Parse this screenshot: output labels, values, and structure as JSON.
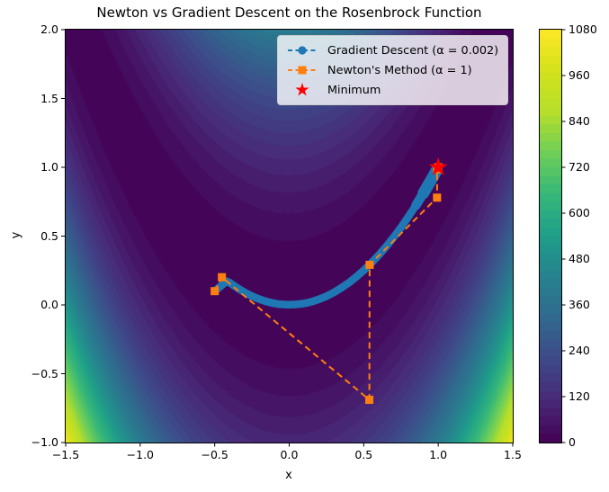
{
  "figure": {
    "title": "Newton vs Gradient Descent on the Rosenbrock Function",
    "xlabel": "x",
    "ylabel": "y",
    "background": "#ffffff"
  },
  "chart_data": {
    "type": "contour+line",
    "title": "Newton vs Gradient Descent on the Rosenbrock Function",
    "xlabel": "x",
    "ylabel": "y",
    "xlim": [
      -1.5,
      1.5
    ],
    "ylim": [
      -1.0,
      2.0
    ],
    "grid": false,
    "legend_position": "upper center-right inside axes",
    "background": {
      "function": "Rosenbrock f(x,y) = (1-x)^2 + 100*(y-x^2)^2",
      "colormap": "viridis",
      "levels": 48,
      "vmin": 0,
      "vmax": 1080,
      "colormap_stops": [
        [
          0.0,
          "#440154"
        ],
        [
          0.1,
          "#482878"
        ],
        [
          0.2,
          "#3e4989"
        ],
        [
          0.3,
          "#31688e"
        ],
        [
          0.4,
          "#26828e"
        ],
        [
          0.5,
          "#1f9e89"
        ],
        [
          0.6,
          "#35b779"
        ],
        [
          0.7,
          "#6ece58"
        ],
        [
          0.8,
          "#b5de2b"
        ],
        [
          0.9,
          "#d2e21b"
        ],
        [
          1.0,
          "#fde725"
        ]
      ]
    },
    "x_ticks": [
      {
        "v": -1.5,
        "label": "−1.5"
      },
      {
        "v": -1.0,
        "label": "−1.0"
      },
      {
        "v": -0.5,
        "label": "−0.5"
      },
      {
        "v": 0.0,
        "label": "0.0"
      },
      {
        "v": 0.5,
        "label": "0.5"
      },
      {
        "v": 1.0,
        "label": "1.0"
      },
      {
        "v": 1.5,
        "label": "1.5"
      }
    ],
    "y_ticks": [
      {
        "v": -1.0,
        "label": "−1.0"
      },
      {
        "v": -0.5,
        "label": "−0.5"
      },
      {
        "v": 0.0,
        "label": "0.0"
      },
      {
        "v": 0.5,
        "label": "0.5"
      },
      {
        "v": 1.0,
        "label": "1.0"
      },
      {
        "v": 1.5,
        "label": "1.5"
      },
      {
        "v": 2.0,
        "label": "2.0"
      }
    ],
    "colorbar_ticks": [
      {
        "v": 0,
        "label": "0"
      },
      {
        "v": 120,
        "label": "120"
      },
      {
        "v": 240,
        "label": "240"
      },
      {
        "v": 360,
        "label": "360"
      },
      {
        "v": 480,
        "label": "480"
      },
      {
        "v": 600,
        "label": "600"
      },
      {
        "v": 720,
        "label": "720"
      },
      {
        "v": 840,
        "label": "840"
      },
      {
        "v": 960,
        "label": "960"
      },
      {
        "v": 1080,
        "label": "1080"
      }
    ],
    "series": [
      {
        "name": "Gradient Descent (α = 0.002)",
        "color": "#1f77b4",
        "marker": "circle",
        "linestyle": "dashed",
        "note": "hundreds of iterates drawn as an overlapping marker chain; subsampled path below, start (−0.5, 0.1), α = 0.002",
        "points": [
          [
            -0.5,
            0.1
          ],
          [
            -0.434,
            0.16
          ],
          [
            -0.419,
            0.171
          ],
          [
            -0.4,
            0.162
          ],
          [
            -0.37,
            0.139
          ],
          [
            -0.34,
            0.118
          ],
          [
            -0.31,
            0.098
          ],
          [
            -0.28,
            0.08
          ],
          [
            -0.25,
            0.064
          ],
          [
            -0.22,
            0.05
          ],
          [
            -0.19,
            0.038
          ],
          [
            -0.16,
            0.027
          ],
          [
            -0.13,
            0.018
          ],
          [
            -0.1,
            0.011
          ],
          [
            -0.07,
            0.006
          ],
          [
            -0.04,
            0.003
          ],
          [
            0.0,
            0.001
          ],
          [
            0.04,
            0.003
          ],
          [
            0.08,
            0.007
          ],
          [
            0.12,
            0.015
          ],
          [
            0.16,
            0.026
          ],
          [
            0.2,
            0.041
          ],
          [
            0.25,
            0.063
          ],
          [
            0.3,
            0.091
          ],
          [
            0.35,
            0.124
          ],
          [
            0.4,
            0.161
          ],
          [
            0.45,
            0.204
          ],
          [
            0.5,
            0.251
          ],
          [
            0.55,
            0.303
          ],
          [
            0.6,
            0.361
          ],
          [
            0.65,
            0.423
          ],
          [
            0.7,
            0.491
          ],
          [
            0.75,
            0.563
          ],
          [
            0.8,
            0.641
          ],
          [
            0.85,
            0.723
          ],
          [
            0.9,
            0.811
          ],
          [
            0.94,
            0.885
          ],
          [
            0.97,
            0.941
          ],
          [
            0.99,
            0.98
          ]
        ]
      },
      {
        "name": "Newton's Method (α = 1)",
        "color": "#ff7f0e",
        "marker": "square",
        "linestyle": "dashed",
        "note": "Newton iterates from (−0.5, 0.1)",
        "points": [
          [
            -0.5,
            0.1
          ],
          [
            -0.4516,
            0.2016
          ],
          [
            0.5376,
            -0.6896
          ],
          [
            0.5398,
            0.2913
          ],
          [
            0.9921,
            0.7796
          ],
          [
            0.9924,
            0.9849
          ],
          [
            1.0,
            1.0
          ]
        ]
      },
      {
        "name": "Minimum",
        "color": "#ff0000",
        "marker": "star",
        "linestyle": "none",
        "points": [
          [
            1.0,
            1.0
          ]
        ]
      }
    ]
  }
}
